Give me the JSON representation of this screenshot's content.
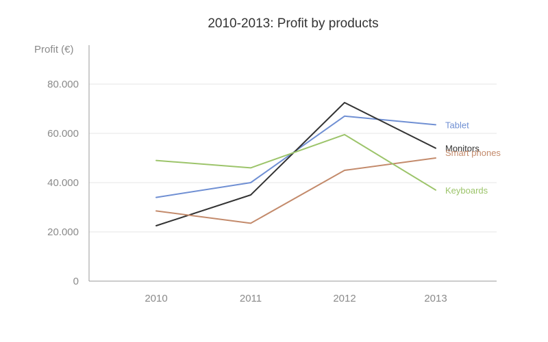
{
  "chart_data": {
    "type": "line",
    "title": "2010-2013: Profit by products",
    "xlabel": "",
    "ylabel": "Profit (€)",
    "categories": [
      "2010",
      "2011",
      "2012",
      "2013"
    ],
    "ylim": [
      0,
      82000
    ],
    "yticks": [
      0,
      20000,
      40000,
      60000,
      80000
    ],
    "ytick_labels": [
      "0",
      "20.000",
      "40.000",
      "60.000",
      "80.000"
    ],
    "grid": true,
    "series": [
      {
        "name": "Tablet",
        "color": "#6f8fd3",
        "values": [
          34000,
          40000,
          67000,
          63500
        ]
      },
      {
        "name": "Monitors",
        "color": "#333333",
        "values": [
          22500,
          35000,
          72500,
          54000
        ]
      },
      {
        "name": "Smart phones",
        "color": "#c38a6b",
        "values": [
          28500,
          23500,
          45000,
          50000
        ]
      },
      {
        "name": "Keyboards",
        "color": "#9cc46a",
        "values": [
          49000,
          46000,
          59500,
          37000
        ]
      }
    ]
  }
}
